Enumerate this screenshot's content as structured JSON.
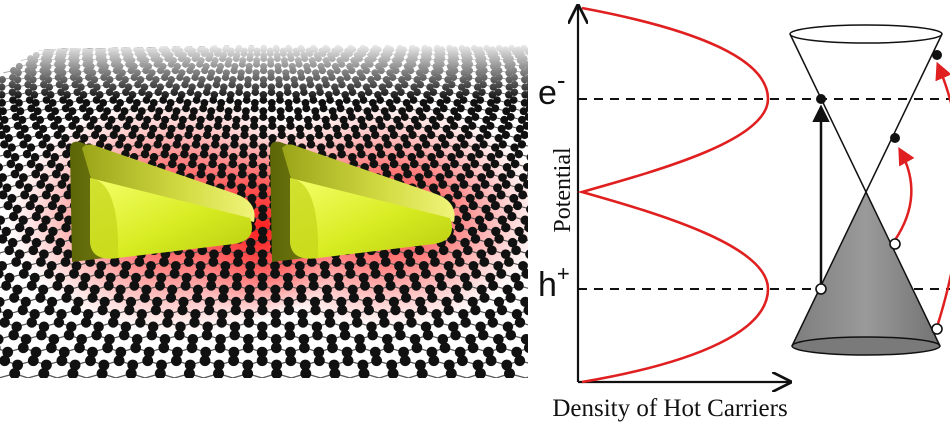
{
  "figure": {
    "axis_x_label": "Density of Hot Carriers",
    "axis_y_label": "Potential",
    "electron_symbol": "e",
    "electron_charge": "-",
    "hole_symbol": "h",
    "hole_charge": "+",
    "colors": {
      "curve": "#e02020",
      "arrow_red": "#e02020",
      "cone_fill": "#8a8a8a",
      "glow": "#ff2a2a",
      "antenna_light": "#e8f53a",
      "antenna_dark": "#6f7a10",
      "lattice_atom": "#111111"
    },
    "icons": [
      "graphene-lattice",
      "nanoantenna",
      "dirac-cone"
    ]
  }
}
